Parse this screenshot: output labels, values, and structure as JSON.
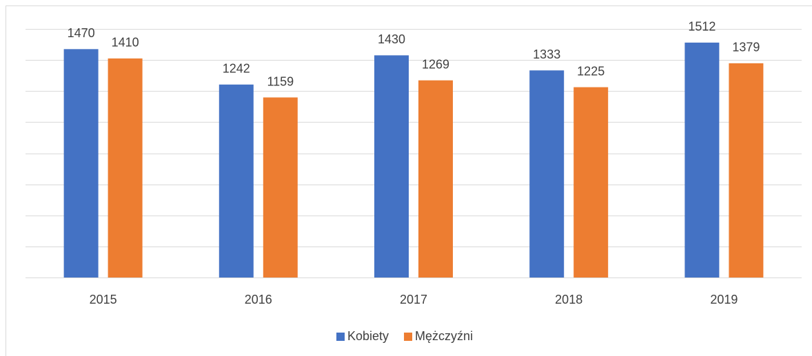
{
  "chart_data": {
    "type": "bar",
    "categories": [
      "2015",
      "2016",
      "2017",
      "2018",
      "2019"
    ],
    "series": [
      {
        "name": "Kobiety",
        "color": "#4472c4",
        "values": [
          1470,
          1242,
          1430,
          1333,
          1512
        ]
      },
      {
        "name": "Mężczyźni",
        "color": "#ed7d31",
        "values": [
          1410,
          1159,
          1269,
          1225,
          1379
        ]
      }
    ],
    "ylim": [
      0,
      1600
    ],
    "yticks": [
      0,
      200,
      400,
      600,
      800,
      1000,
      1200,
      1400,
      1600
    ],
    "grid": true,
    "legend": "bottom"
  }
}
